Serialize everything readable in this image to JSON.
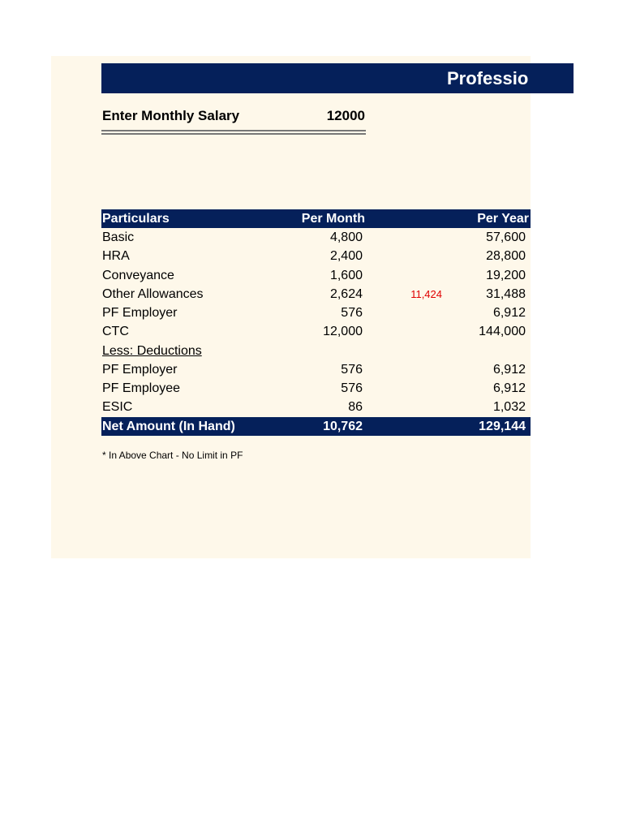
{
  "header": {
    "title": "Professio"
  },
  "salary": {
    "label": "Enter Monthly Salary",
    "value": "12000"
  },
  "table": {
    "columns": [
      "Particulars",
      "Per Month",
      "Per Year"
    ],
    "rows": [
      [
        "Basic",
        "4,800",
        "57,600"
      ],
      [
        "HRA",
        "2,400",
        "28,800"
      ],
      [
        "Conveyance",
        "1,600",
        "19,200"
      ],
      [
        "Other Allowances",
        "2,624",
        "31,488"
      ],
      [
        "PF Employer",
        "576",
        "6,912"
      ],
      [
        "CTC",
        "12,000",
        "144,000"
      ],
      [
        "Less: Deductions"
      ],
      [
        "PF Employer",
        "576",
        "6,912"
      ],
      [
        "PF Employee",
        "576",
        "6,912"
      ],
      [
        "ESIC",
        "86",
        "1,032"
      ]
    ],
    "total": [
      "Net Amount (In Hand)",
      "10,762",
      "129,144"
    ],
    "side_note": "11,424"
  },
  "footnote": "* In Above Chart - No Limit in PF"
}
